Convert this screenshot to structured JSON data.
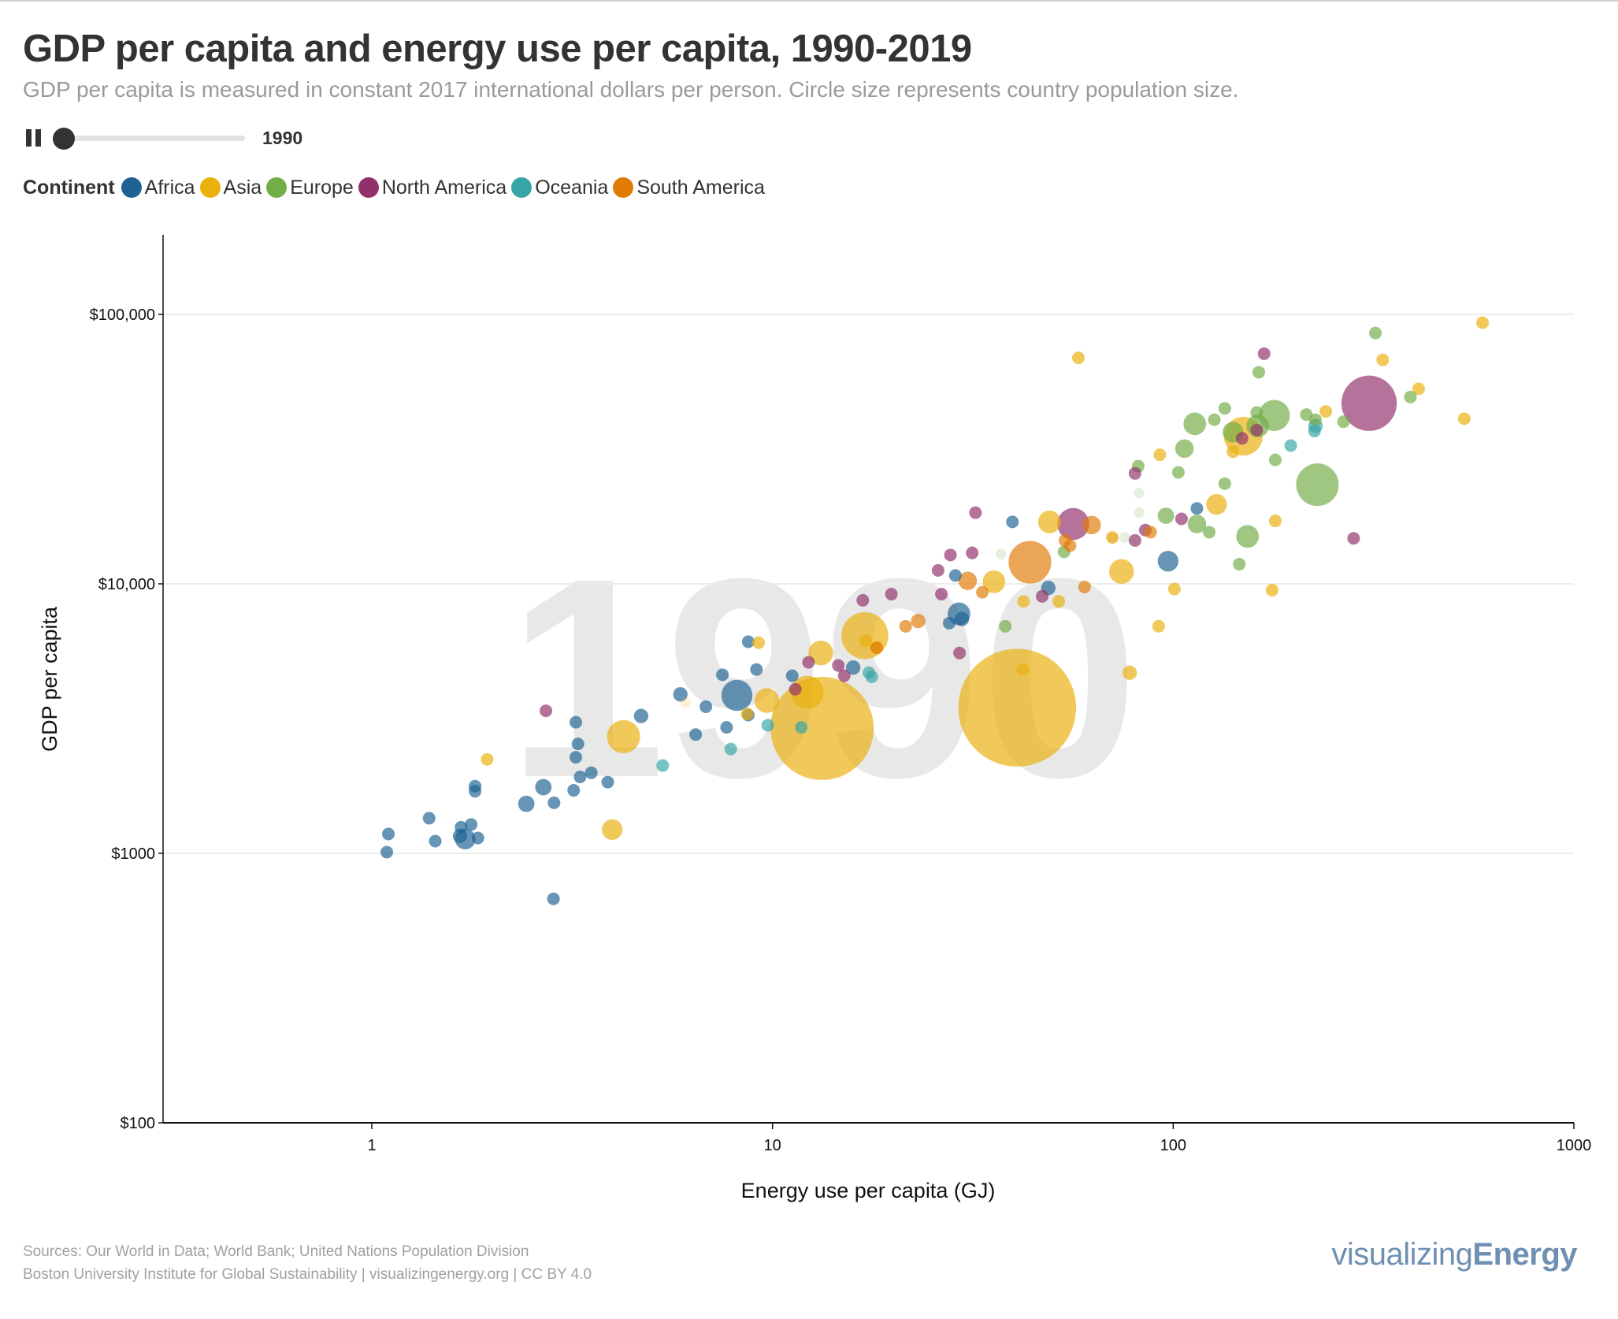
{
  "header": {
    "title": "GDP per capita and energy use per capita, 1990-2019",
    "subtitle": "GDP per capita is measured in constant 2017 international dollars per person. Circle size represents country population size."
  },
  "controls": {
    "play_state": "playing",
    "pause_icon": "pause-icon",
    "year": "1990",
    "year_range": [
      1990,
      2019
    ],
    "slider_progress": 0
  },
  "legend": {
    "title": "Continent",
    "items": [
      {
        "label": "Africa",
        "color": "#1f6394"
      },
      {
        "label": "Asia",
        "color": "#ebb00c"
      },
      {
        "label": "Europe",
        "color": "#72ad47"
      },
      {
        "label": "North America",
        "color": "#92306b"
      },
      {
        "label": "Oceania",
        "color": "#37a5a5"
      },
      {
        "label": "South America",
        "color": "#e07b06"
      }
    ]
  },
  "footer": {
    "sources": "Sources: Our World in Data; World Bank; United Nations Population Division",
    "credit": "Boston University Institute for Global Sustainability | visualizingenergy.org | CC BY 4.0",
    "logo_light": "visualizing",
    "logo_bold": "Energy",
    "logo_color": "#6f8fb3"
  },
  "chart_data": {
    "type": "scatter",
    "title": "GDP per capita and energy use per capita, 1990-2019",
    "xlabel": "Energy use per capita (GJ)",
    "ylabel": "GDP per capita",
    "xscale": "log",
    "yscale": "log",
    "xlim": [
      0.4,
      1000
    ],
    "ylim": [
      100,
      200000
    ],
    "xticks": [
      {
        "value": 1,
        "label": "1"
      },
      {
        "value": 10,
        "label": "10"
      },
      {
        "value": 100,
        "label": "100"
      },
      {
        "value": 1000,
        "label": "1000"
      }
    ],
    "yticks": [
      {
        "value": 100,
        "label": "$100"
      },
      {
        "value": 1000,
        "label": "$1000"
      },
      {
        "value": 10000,
        "label": "$10,000"
      },
      {
        "value": 100000,
        "label": "$100,000"
      }
    ],
    "grid": "horizontal",
    "watermark_year": "1990",
    "size_encoding": "population (millions)",
    "series": [
      {
        "name": "Africa",
        "color": "#1f6394",
        "points": [
          [
            1.09,
            1010,
            13
          ],
          [
            1.1,
            1180,
            13
          ],
          [
            1.39,
            1350,
            13
          ],
          [
            1.44,
            1110,
            13
          ],
          [
            1.67,
            1250,
            13
          ],
          [
            1.66,
            1160,
            17
          ],
          [
            1.71,
            1130,
            35
          ],
          [
            1.77,
            1280,
            13
          ],
          [
            1.84,
            1140,
            13
          ],
          [
            1.81,
            1775,
            13
          ],
          [
            1.81,
            1700,
            13
          ],
          [
            2.43,
            1527,
            22
          ],
          [
            2.68,
            1760,
            22
          ],
          [
            2.85,
            1540,
            13
          ],
          [
            2.84,
            678,
            13
          ],
          [
            3.23,
            3065,
            13
          ],
          [
            3.27,
            2547,
            13
          ],
          [
            3.23,
            2272,
            13
          ],
          [
            3.31,
            1921,
            13
          ],
          [
            3.19,
            1713,
            13
          ],
          [
            3.53,
            1990,
            13
          ],
          [
            3.88,
            1838,
            13
          ],
          [
            4.7,
            3234,
            17
          ],
          [
            5.89,
            3890,
            17
          ],
          [
            6.43,
            2760,
            13
          ],
          [
            6.82,
            3500,
            13
          ],
          [
            7.5,
            4600,
            13
          ],
          [
            7.68,
            2934,
            13
          ],
          [
            8.15,
            3857,
            79
          ],
          [
            8.7,
            6100,
            13
          ],
          [
            9.12,
            4810,
            13
          ],
          [
            8.7,
            3260,
            13
          ],
          [
            11.2,
            4560,
            13
          ],
          [
            15.9,
            4890,
            17
          ],
          [
            29.2,
            7740,
            42
          ],
          [
            29.7,
            7410,
            17
          ],
          [
            27.6,
            7150,
            13
          ],
          [
            28.6,
            10740,
            13
          ],
          [
            39.7,
            16980,
            13
          ],
          [
            48.8,
            9660,
            17
          ],
          [
            97.1,
            12140,
            35
          ],
          [
            114.6,
            19050,
            13
          ]
        ]
      },
      {
        "name": "Asia",
        "color": "#ebb00c",
        "points": [
          [
            1.94,
            2232,
            13
          ],
          [
            3.98,
            1225,
            35
          ],
          [
            4.25,
            2710,
            90
          ],
          [
            6.06,
            3625,
            9,
            "faint"
          ],
          [
            9.23,
            6050,
            13
          ],
          [
            9.68,
            3690,
            50
          ],
          [
            8.65,
            3290,
            13
          ],
          [
            12.2,
            3960,
            90
          ],
          [
            13.2,
            5540,
            50
          ],
          [
            13.3,
            2908,
            870
          ],
          [
            17.0,
            6430,
            180
          ],
          [
            17.1,
            6150,
            13
          ],
          [
            18.2,
            5790,
            13
          ],
          [
            35.7,
            10180,
            42
          ],
          [
            40.8,
            3470,
            1135
          ],
          [
            42.1,
            4810,
            13
          ],
          [
            42.3,
            8610,
            13
          ],
          [
            49.1,
            16980,
            42
          ],
          [
            51.8,
            8610,
            13
          ],
          [
            58.0,
            69000,
            13
          ],
          [
            70.5,
            14870,
            13
          ],
          [
            74.3,
            11120,
            50
          ],
          [
            77.9,
            4680,
            17
          ],
          [
            92.6,
            30130,
            13
          ],
          [
            92.0,
            6960,
            13
          ],
          [
            100.7,
            9570,
            13
          ],
          [
            128.3,
            19720,
            35
          ],
          [
            141.0,
            30930,
            13
          ],
          [
            149.6,
            35320,
            123
          ],
          [
            176.6,
            9480,
            13
          ],
          [
            179.8,
            17130,
            13
          ],
          [
            240.4,
            43650,
            13
          ],
          [
            333.4,
            67810,
            13
          ],
          [
            409.8,
            52970,
            13
          ],
          [
            532.7,
            41020,
            13
          ],
          [
            591.6,
            93180,
            13
          ]
        ]
      },
      {
        "name": "Europe",
        "color": "#72ad47",
        "points": [
          [
            38.1,
            6960,
            13
          ],
          [
            53.4,
            13150,
            13
          ],
          [
            81.8,
            27350,
            13
          ],
          [
            95.9,
            17900,
            22
          ],
          [
            103.0,
            25930,
            13
          ],
          [
            106.7,
            31760,
            28
          ],
          [
            113.2,
            39260,
            42
          ],
          [
            114.6,
            16680,
            28
          ],
          [
            123.0,
            15550,
            13
          ],
          [
            126.7,
            40640,
            13
          ],
          [
            134.5,
            23540,
            13
          ],
          [
            134.5,
            44790,
            13
          ],
          [
            141.0,
            36560,
            35
          ],
          [
            146.2,
            11830,
            13
          ],
          [
            153.3,
            15000,
            42
          ],
          [
            163.5,
            60980,
            13
          ],
          [
            161.6,
            43250,
            13
          ],
          [
            162.6,
            38550,
            42
          ],
          [
            178.8,
            42170,
            79
          ],
          [
            179.8,
            28840,
            13
          ],
          [
            214.9,
            42480,
            13
          ],
          [
            226.5,
            40640,
            13
          ],
          [
            229.1,
            23330,
            148
          ],
          [
            266.1,
            39960,
            13
          ],
          [
            319.6,
            85310,
            13
          ],
          [
            390.8,
            49350,
            13
          ],
          [
            75.7,
            14870,
            9,
            "faint"
          ],
          [
            82.2,
            21730,
            9,
            "faint"
          ],
          [
            82.2,
            18370,
            9,
            "faint"
          ],
          [
            37.2,
            12910,
            9,
            "faint"
          ]
        ]
      },
      {
        "name": "North America",
        "color": "#92306b",
        "points": [
          [
            2.72,
            3380,
            13
          ],
          [
            11.4,
            4065,
            13
          ],
          [
            12.3,
            5115,
            13
          ],
          [
            14.6,
            4980,
            13
          ],
          [
            15.1,
            4560,
            13
          ],
          [
            16.8,
            8690,
            13
          ],
          [
            19.8,
            9160,
            13
          ],
          [
            25.9,
            11220,
            13
          ],
          [
            26.4,
            9160,
            13
          ],
          [
            27.8,
            12800,
            13
          ],
          [
            29.3,
            5540,
            13
          ],
          [
            31.5,
            13030,
            13
          ],
          [
            32.1,
            18370,
            13
          ],
          [
            47.1,
            8990,
            13
          ],
          [
            56.3,
            16680,
            84
          ],
          [
            80.3,
            25700,
            13
          ],
          [
            80.3,
            14490,
            13
          ],
          [
            85.2,
            15830,
            13
          ],
          [
            104.9,
            17430,
            13
          ],
          [
            148.6,
            34680,
            13
          ],
          [
            161.6,
            37220,
            13
          ],
          [
            168.6,
            71450,
            13
          ],
          [
            282.0,
            14750,
            13
          ],
          [
            308.3,
            46800,
            250
          ]
        ]
      },
      {
        "name": "Oceania",
        "color": "#37a5a5",
        "points": [
          [
            5.32,
            2118,
            13
          ],
          [
            7.87,
            2438,
            13
          ],
          [
            9.73,
            2987,
            13
          ],
          [
            11.8,
            2934,
            13
          ],
          [
            17.4,
            4680,
            13
          ],
          [
            17.7,
            4520,
            13
          ],
          [
            196.5,
            32590,
            13
          ],
          [
            225.3,
            36900,
            13
          ],
          [
            226.5,
            38550,
            17
          ]
        ]
      },
      {
        "name": "South America",
        "color": "#e07b06",
        "points": [
          [
            18.2,
            5790,
            13
          ],
          [
            21.5,
            6960,
            13
          ],
          [
            23.1,
            7280,
            17
          ],
          [
            30.7,
            10260,
            28
          ],
          [
            33.4,
            9310,
            13
          ],
          [
            43.9,
            12030,
            149
          ],
          [
            53.7,
            14490,
            13
          ],
          [
            55.3,
            13860,
            13
          ],
          [
            60.1,
            9740,
            13
          ],
          [
            62.6,
            16530,
            28
          ],
          [
            70.5,
            14870,
            9,
            "faint"
          ],
          [
            87.8,
            15550,
            13
          ]
        ]
      }
    ]
  }
}
